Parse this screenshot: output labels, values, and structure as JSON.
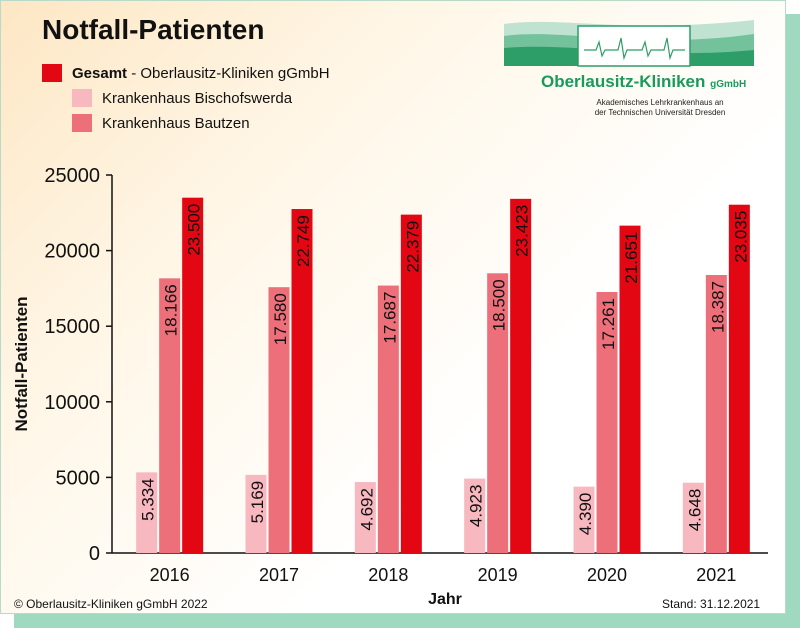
{
  "title": "Notfall-Patienten",
  "legend": [
    {
      "label_bold": "Gesamt",
      "label_rest": " - Oberlausitz-Kliniken gGmbH",
      "color": "#e30613"
    },
    {
      "label_bold": "",
      "label_rest": "Krankenhaus Bischofswerda",
      "color": "#f7b8c0"
    },
    {
      "label_bold": "",
      "label_rest": "Krankenhaus Bautzen",
      "color": "#ec6f7a"
    }
  ],
  "logo": {
    "name": "Oberlausitz-Kliniken",
    "suffix": "gGmbH",
    "subtitle_line1": "Akademisches Lehrkrankenhaus an",
    "subtitle_line2": "der Technischen Universität Dresden"
  },
  "footer": {
    "copyright": "© Oberlausitz-Kliniken gGmbH 2022",
    "stand": "Stand: 31.12.2021"
  },
  "chart_data": {
    "type": "bar",
    "categories": [
      "2016",
      "2017",
      "2018",
      "2019",
      "2020",
      "2021"
    ],
    "series": [
      {
        "name": "Krankenhaus Bischofswerda",
        "values": [
          5334,
          5169,
          4692,
          4923,
          4390,
          4648
        ],
        "labels": [
          "5.334",
          "5.169",
          "4.692",
          "4.923",
          "4.390",
          "4.648"
        ],
        "color": "#f7b8c0"
      },
      {
        "name": "Krankenhaus Bautzen",
        "values": [
          18166,
          17580,
          17687,
          18500,
          17261,
          18387
        ],
        "labels": [
          "18.166",
          "17.580",
          "17.687",
          "18.500",
          "17.261",
          "18.387"
        ],
        "color": "#ec6f7a"
      },
      {
        "name": "Gesamt - Oberlausitz-Kliniken gGmbH",
        "values": [
          23500,
          22749,
          22379,
          23423,
          21651,
          23035
        ],
        "labels": [
          "23.500",
          "22.749",
          "22.379",
          "23.423",
          "21.651",
          "23.035"
        ],
        "color": "#e30613"
      }
    ],
    "xlabel": "Jahr",
    "ylabel": "Notfall-Patienten",
    "ylim": [
      0,
      25000
    ],
    "yticks": [
      "0",
      "5000",
      "10000",
      "15000",
      "20000",
      "25000"
    ],
    "grid": false
  }
}
